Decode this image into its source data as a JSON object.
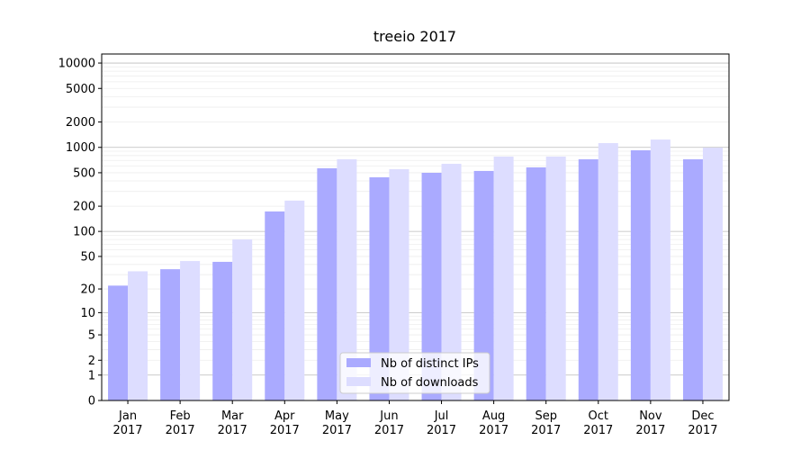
{
  "chart_data": {
    "type": "bar",
    "title": "treeio 2017",
    "categories": [
      "Jan\n2017",
      "Feb\n2017",
      "Mar\n2017",
      "Apr\n2017",
      "May\n2017",
      "Jun\n2017",
      "Jul\n2017",
      "Aug\n2017",
      "Sep\n2017",
      "Oct\n2017",
      "Nov\n2017",
      "Dec\n2017"
    ],
    "series": [
      {
        "name": "Nb of distinct IPs",
        "color": "#aaaaff",
        "values": [
          22,
          35,
          43,
          173,
          565,
          441,
          499,
          525,
          579,
          722,
          923,
          722
        ]
      },
      {
        "name": "Nb of downloads",
        "color": "#ddddff",
        "values": [
          33,
          44,
          80,
          233,
          722,
          551,
          638,
          777,
          777,
          1124,
          1238,
          993
        ]
      }
    ],
    "yscale": "log1p",
    "ylim": [
      0,
      12800
    ],
    "yticks": [
      0,
      1,
      2,
      5,
      10,
      20,
      50,
      100,
      200,
      500,
      1000,
      2000,
      5000,
      10000
    ],
    "grid": true,
    "legend": "lower center"
  }
}
